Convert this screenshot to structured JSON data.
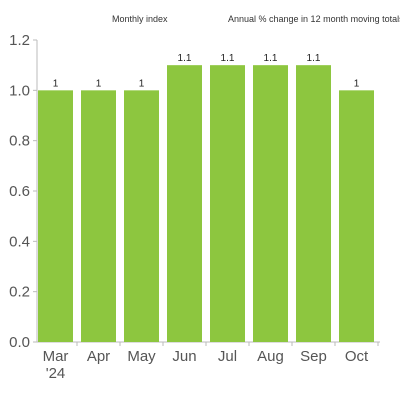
{
  "chart_data": {
    "type": "bar",
    "subtitle_left": "Monthly index",
    "subtitle_right": "Annual % change in 12 month moving totals",
    "categories": [
      "Mar",
      "Apr",
      "May",
      "Jun",
      "Jul",
      "Aug",
      "Sep",
      "Oct"
    ],
    "category_sublabels": [
      "'24",
      "",
      "",
      "",
      "",
      "",
      "",
      ""
    ],
    "values": [
      1.0,
      1.0,
      1.0,
      1.1,
      1.1,
      1.1,
      1.1,
      1.0
    ],
    "data_labels": [
      "1",
      "1",
      "1",
      "1.1",
      "1.1",
      "1.1",
      "1.1",
      "1"
    ],
    "ylim": [
      0,
      1.2
    ],
    "yticks": [
      "0.0",
      "0.2",
      "0.4",
      "0.6",
      "0.8",
      "1.0",
      "1.2"
    ],
    "grid": false,
    "bar_color": "#8dc63f",
    "axis_color": "#bbbbbb"
  }
}
